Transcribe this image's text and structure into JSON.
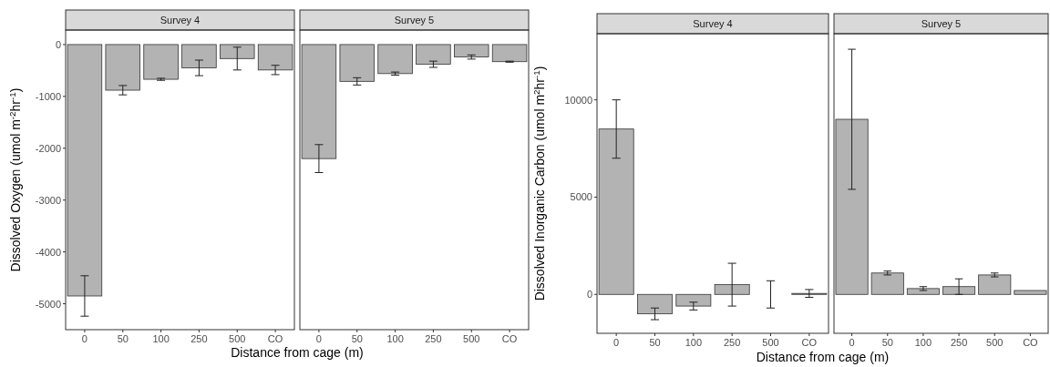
{
  "chart_data": [
    {
      "type": "bar",
      "title": "Survey 4",
      "ylabel": "Dissolved Oxygen (umol m$^{-2}$hr$^{-1}$)",
      "xlabel": "Distance from cage (m)",
      "categories": [
        "0",
        "50",
        "100",
        "250",
        "500",
        "CO"
      ],
      "values": [
        -4850,
        -880,
        -670,
        -450,
        -270,
        -490
      ],
      "errors": [
        390,
        90,
        20,
        150,
        220,
        90
      ],
      "color": "#b3b3b3",
      "ylim": [
        -5500,
        280
      ],
      "yticks": [
        -5000,
        -4000,
        -3000,
        -2000,
        -1000,
        0
      ],
      "grid": false
    },
    {
      "type": "bar",
      "title": "Survey 5",
      "categories": [
        "0",
        "50",
        "100",
        "250",
        "500",
        "CO"
      ],
      "values": [
        -2200,
        -710,
        -560,
        -380,
        -240,
        -330
      ],
      "errors": [
        270,
        70,
        30,
        60,
        40,
        10
      ],
      "color": "#b3b3b3",
      "ylim": [
        -5500,
        280
      ],
      "tick_labels": "x",
      "grid": false
    },
    {
      "type": "bar",
      "title": "Survey 4",
      "ylabel": "Dissolved Inorganic Carbon (umol m$^{2}$hr$^{-1}$)",
      "xlabel": "Distance from cage (m)",
      "categories": [
        "0",
        "50",
        "100",
        "250",
        "500",
        "CO"
      ],
      "values": [
        8500,
        -1000,
        -600,
        500,
        0,
        50
      ],
      "errors": [
        1500,
        300,
        200,
        1100,
        700,
        200
      ],
      "color": "#b3b3b3",
      "ylim": [
        -2000,
        13400
      ],
      "yticks": [
        0,
        5000,
        10000
      ],
      "grid": false
    },
    {
      "type": "bar",
      "title": "Survey 5",
      "categories": [
        "0",
        "50",
        "100",
        "250",
        "500",
        "CO"
      ],
      "values": [
        9000,
        1100,
        300,
        400,
        1000,
        200
      ],
      "errors": [
        3600,
        100,
        100,
        400,
        100,
        null
      ],
      "color": "#b3b3b3",
      "ylim": [
        -2000,
        13400
      ],
      "tick_labels": "x",
      "grid": false
    }
  ]
}
